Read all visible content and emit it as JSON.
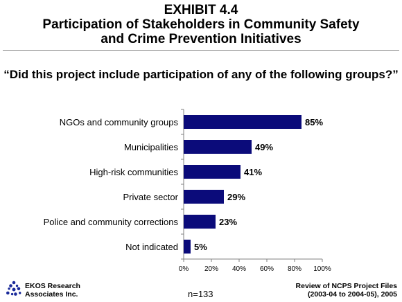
{
  "header": {
    "exhibit": "EXHIBIT 4.4",
    "title_line1": "Participation of Stakeholders in Community Safety",
    "title_line2": "and Crime Prevention Initiatives"
  },
  "question": "“Did this project include participation of any of the following groups?”",
  "chart_data": {
    "type": "bar",
    "orientation": "horizontal",
    "categories": [
      "NGOs and community groups",
      "Municipalities",
      "High-risk communities",
      "Private sector",
      "Police and community corrections",
      "Not indicated"
    ],
    "values": [
      85,
      49,
      41,
      29,
      23,
      5
    ],
    "value_labels": [
      "85%",
      "49%",
      "41%",
      "29%",
      "23%",
      "5%"
    ],
    "xlim": [
      0,
      100
    ],
    "xticks": [
      0,
      20,
      40,
      60,
      80,
      100
    ],
    "xtick_labels": [
      "0%",
      "20%",
      "40%",
      "60%",
      "80%",
      "100%"
    ],
    "bar_color": "#0b0b7a",
    "grid": false
  },
  "footer": {
    "org_line1": "EKOS Research",
    "org_line2": "Associates Inc.",
    "n_label": "n=133",
    "source_line1": "Review of NCPS Project Files",
    "source_line2": "(2003-04 to 2004-05), 2005",
    "logo_color": "#1a2a9a"
  }
}
